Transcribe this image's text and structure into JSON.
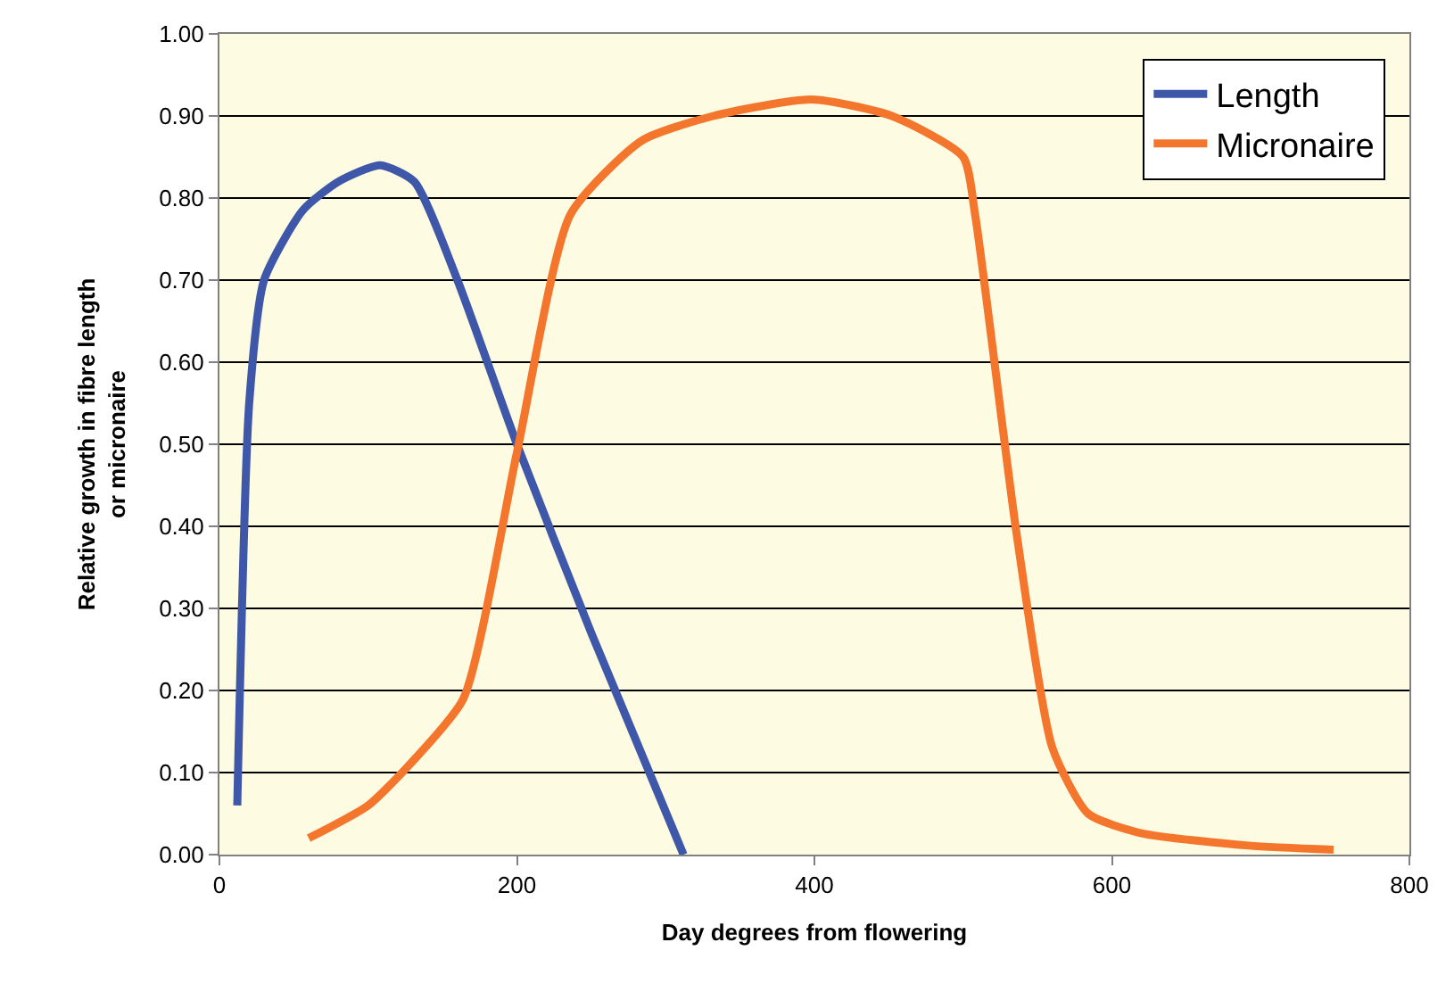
{
  "chart_data": {
    "type": "line",
    "xlabel": "Day degrees from flowering",
    "ylabel": "Relative growth in fibre length\nor micronaire",
    "xlim": [
      0,
      800
    ],
    "xticks": [
      0,
      200,
      400,
      600,
      800
    ],
    "ylim": [
      0,
      1
    ],
    "yticks": [
      {
        "value": 0,
        "label": "0.00"
      },
      {
        "value": 0.1,
        "label": "0.10"
      },
      {
        "value": 0.2,
        "label": "0.20"
      },
      {
        "value": 0.3,
        "label": "0.30"
      },
      {
        "value": 0.4,
        "label": "0.40"
      },
      {
        "value": 0.5,
        "label": "0.50"
      },
      {
        "value": 0.6,
        "label": "0.60"
      },
      {
        "value": 0.7,
        "label": "0.70"
      },
      {
        "value": 0.8,
        "label": "0.80"
      },
      {
        "value": 0.9,
        "label": "0.90"
      },
      {
        "value": 1,
        "label": "1.00"
      }
    ],
    "grid": "y",
    "legend": "top right",
    "marker": "none",
    "line_style": "solid",
    "series": [
      {
        "name": "Length",
        "color": "#3f57a8",
        "x": [
          12,
          20,
          30,
          56,
          80,
          108,
          131,
          160,
          200,
          250,
          312
        ],
        "values": [
          0.06,
          0.55,
          0.7,
          0.785,
          0.82,
          0.84,
          0.82,
          0.7,
          0.5,
          0.27,
          0.0
        ]
      },
      {
        "name": "Micronaire",
        "color": "#f4752c",
        "x": [
          60,
          100,
          128,
          164,
          200,
          236,
          284,
          332,
          398,
          452,
          500,
          508,
          536,
          560,
          584,
          620,
          692,
          749
        ],
        "values": [
          0.02,
          0.06,
          0.11,
          0.19,
          0.49,
          0.78,
          0.87,
          0.9,
          0.92,
          0.9,
          0.85,
          0.78,
          0.39,
          0.13,
          0.05,
          0.026,
          0.011,
          0.006
        ]
      }
    ]
  }
}
